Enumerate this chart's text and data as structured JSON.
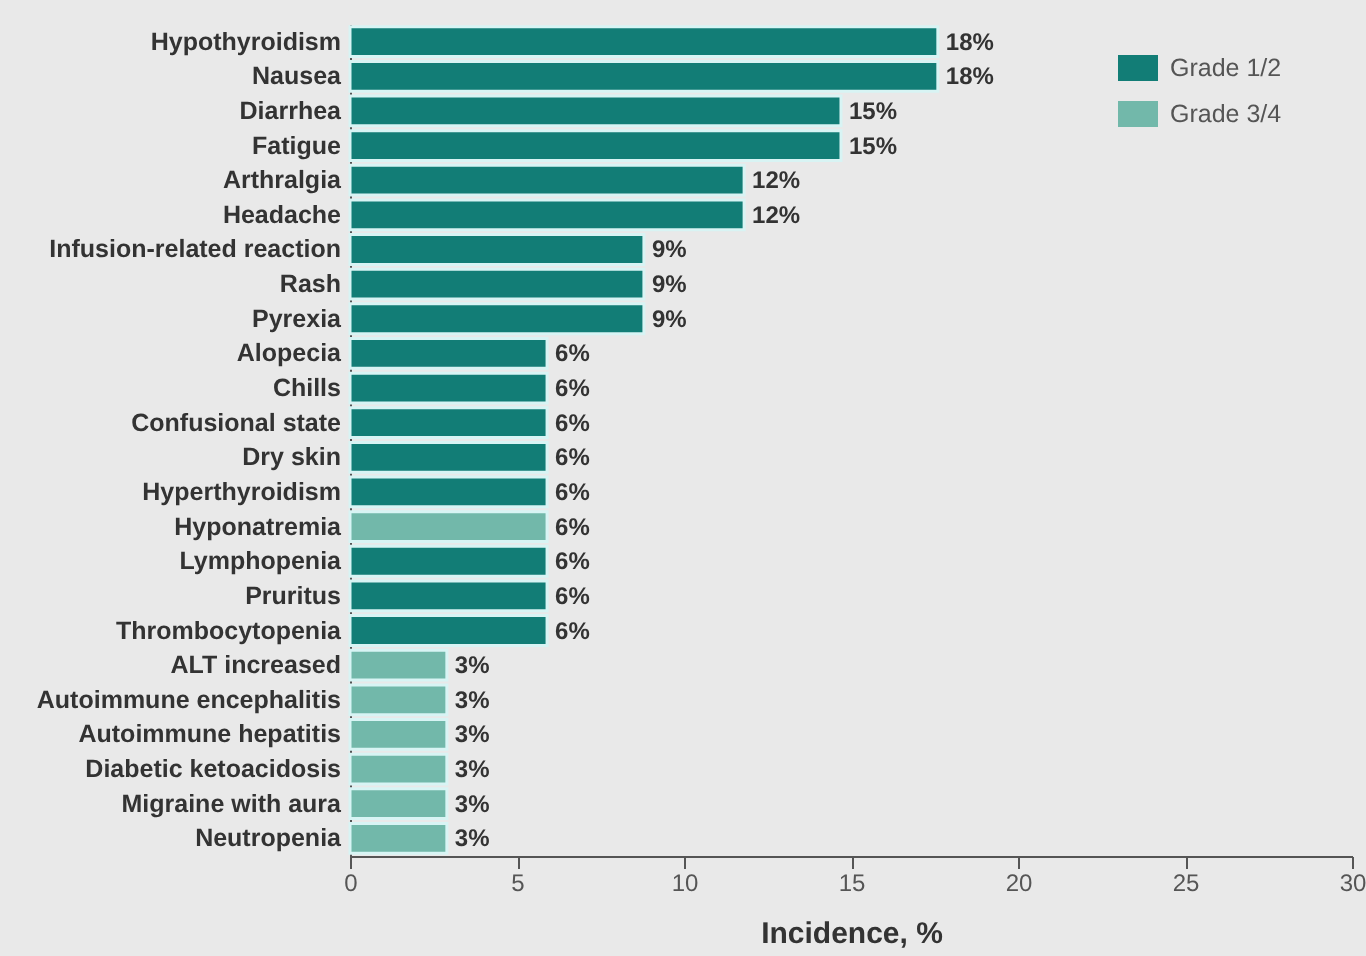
{
  "chart_data": {
    "type": "bar",
    "orientation": "horizontal",
    "categories": [
      "Hypothyroidism",
      "Nausea",
      "Diarrhea",
      "Fatigue",
      "Arthralgia",
      "Headache",
      "Infusion-related reaction",
      "Rash",
      "Pyrexia",
      "Alopecia",
      "Chills",
      "Confusional state",
      "Dry skin",
      "Hyperthyroidism",
      "Hyponatremia",
      "Lymphopenia",
      "Pruritus",
      "Thrombocytopenia",
      "ALT increased",
      "Autoimmune encephalitis",
      "Autoimmune hepatitis",
      "Diabetic ketoacidosis",
      "Migraine with aura",
      "Neutropenia"
    ],
    "series": [
      {
        "name": "Grade 1/2",
        "color": "#127d76",
        "values": [
          17.6,
          17.6,
          14.7,
          14.7,
          11.8,
          11.8,
          8.8,
          8.8,
          8.8,
          5.9,
          5.9,
          5.9,
          5.9,
          5.9,
          null,
          5.9,
          5.9,
          5.9,
          null,
          null,
          null,
          null,
          null,
          null
        ],
        "value_labels": [
          "18%",
          "18%",
          "15%",
          "15%",
          "12%",
          "12%",
          "9%",
          "9%",
          "9%",
          "6%",
          "6%",
          "6%",
          "6%",
          "6%",
          null,
          "6%",
          "6%",
          "6%",
          null,
          null,
          null,
          null,
          null,
          null
        ]
      },
      {
        "name": "Grade 3/4",
        "color": "#72b8aa",
        "values": [
          null,
          null,
          null,
          null,
          null,
          null,
          null,
          null,
          null,
          null,
          null,
          null,
          null,
          null,
          5.9,
          null,
          null,
          null,
          2.9,
          2.9,
          2.9,
          2.9,
          2.9,
          2.9
        ],
        "value_labels": [
          null,
          null,
          null,
          null,
          null,
          null,
          null,
          null,
          null,
          null,
          null,
          null,
          null,
          null,
          "6%",
          null,
          null,
          null,
          "3%",
          "3%",
          "3%",
          "3%",
          "3%",
          "3%"
        ]
      }
    ],
    "xlabel": "Incidence, %",
    "xlim": [
      0,
      30
    ],
    "xticks": [
      0,
      5,
      10,
      15,
      20,
      25,
      30
    ],
    "legend": "top right",
    "grid": false
  }
}
